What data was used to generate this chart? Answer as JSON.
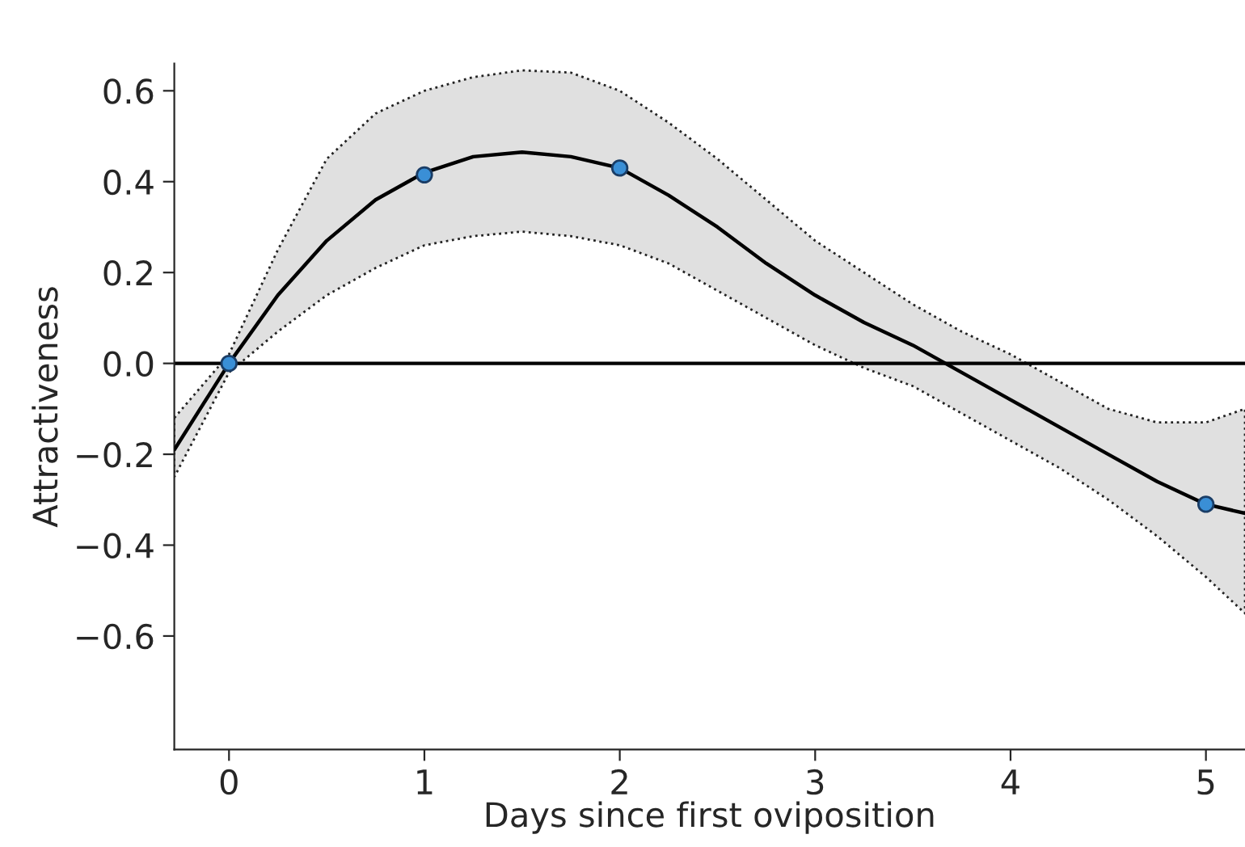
{
  "chart_data": {
    "type": "line",
    "xlabel": "Days since first oviposition",
    "ylabel": "Attractiveness",
    "xlim": [
      -0.28,
      5.2
    ],
    "xticks": [
      0,
      1,
      2,
      3,
      4,
      5
    ],
    "ylim": [
      -0.85,
      0.66
    ],
    "yticks": [
      {
        "value": -0.6,
        "label": "−0.6"
      },
      {
        "value": -0.4,
        "label": "−0.4"
      },
      {
        "value": -0.2,
        "label": "−0.2"
      },
      {
        "value": 0,
        "label": "0.0"
      },
      {
        "value": 0.2,
        "label": "0.2"
      },
      {
        "value": 0.4,
        "label": "0.4"
      },
      {
        "value": 0.6,
        "label": "0.6"
      }
    ],
    "grid": false,
    "legend": false,
    "ref_lines": [
      {
        "axis": "y",
        "value": 0,
        "color": "#000000",
        "line_style": "solid"
      }
    ],
    "series": [
      {
        "color": "#000000",
        "line_style": "solid",
        "x": [
          -0.28,
          0,
          0.25,
          0.5,
          0.75,
          1,
          1.25,
          1.5,
          1.75,
          2,
          2.25,
          2.5,
          2.75,
          3,
          3.25,
          3.5,
          3.75,
          4,
          4.25,
          4.5,
          4.75,
          5,
          5.2
        ],
        "values": [
          -0.19,
          0,
          0.15,
          0.27,
          0.36,
          0.42,
          0.455,
          0.465,
          0.455,
          0.43,
          0.37,
          0.3,
          0.22,
          0.15,
          0.09,
          0.04,
          -0.02,
          -0.08,
          -0.14,
          -0.2,
          -0.26,
          -0.31,
          -0.33
        ],
        "lower": [
          -0.25,
          -0.02,
          0.07,
          0.15,
          0.21,
          0.26,
          0.28,
          0.29,
          0.28,
          0.26,
          0.22,
          0.16,
          0.1,
          0.04,
          -0.01,
          -0.05,
          -0.11,
          -0.17,
          -0.23,
          -0.3,
          -0.38,
          -0.47,
          -0.55
        ],
        "upper": [
          -0.12,
          0.02,
          0.25,
          0.45,
          0.55,
          0.6,
          0.63,
          0.645,
          0.64,
          0.6,
          0.53,
          0.45,
          0.36,
          0.27,
          0.2,
          0.13,
          0.07,
          0.02,
          -0.04,
          -0.1,
          -0.13,
          -0.13,
          -0.1
        ]
      },
      {
        "type": "scatter",
        "color": "#3a8fd6",
        "marker": "circle",
        "x": [
          0,
          1,
          2,
          5
        ],
        "values": [
          0,
          0.415,
          0.43,
          -0.31
        ]
      }
    ]
  }
}
